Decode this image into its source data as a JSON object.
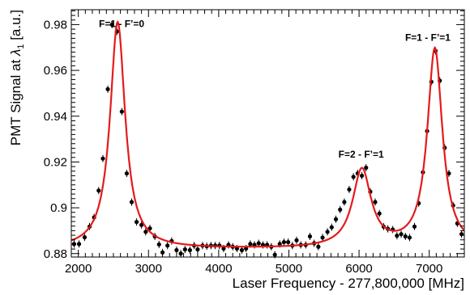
{
  "chart_data": {
    "type": "scatter",
    "title": "",
    "xlabel": "Laser Frequency - 277,800,000 [MHz]",
    "ylabel_main": "PMT Signal at ",
    "ylabel_symbol": "λ",
    "ylabel_subscript": "1",
    "ylabel_unit": " [a.u.]",
    "xlim": [
      1900,
      7500
    ],
    "ylim": [
      0.8785,
      0.9865
    ],
    "x_ticks": [
      2000,
      3000,
      4000,
      5000,
      6000,
      7000
    ],
    "y_ticks": [
      0.88,
      0.9,
      0.92,
      0.94,
      0.96,
      0.98
    ],
    "y_tick_labels": [
      "0.88",
      "0.9",
      "0.92",
      "0.94",
      "0.96",
      "0.98"
    ],
    "grid": false,
    "legend": "none",
    "colors": {
      "fit": "#e41a1c",
      "points": "#000000"
    },
    "annotations": [
      {
        "text": "F=1 - F’=0",
        "x": 2940,
        "y": 0.979
      },
      {
        "text": "F=2 - F’=1",
        "x": 6030,
        "y": 0.922
      },
      {
        "text": "F=1 - F’=1",
        "x": 6980,
        "y": 0.973
      }
    ],
    "fit": {
      "baseline": 0.882,
      "peaks": [
        {
          "center": 2560,
          "amplitude": 0.099,
          "hwhm": 130
        },
        {
          "center": 6040,
          "amplitude": 0.034,
          "hwhm": 160
        },
        {
          "center": 7080,
          "amplitude": 0.087,
          "hwhm": 130
        }
      ]
    },
    "points": [
      [
        1940,
        0.8842
      ],
      [
        2010,
        0.8842
      ],
      [
        2090,
        0.8871
      ],
      [
        2160,
        0.8918
      ],
      [
        2225,
        0.8958
      ],
      [
        2290,
        0.9075
      ],
      [
        2350,
        0.9215
      ],
      [
        2420,
        0.9518
      ],
      [
        2480,
        0.98
      ],
      [
        2550,
        0.977
      ],
      [
        2620,
        0.942
      ],
      [
        2690,
        0.915
      ],
      [
        2760,
        0.9025
      ],
      [
        2830,
        0.8938
      ],
      [
        2900,
        0.8925
      ],
      [
        2960,
        0.8895
      ],
      [
        3020,
        0.891
      ],
      [
        3090,
        0.8875
      ],
      [
        3150,
        0.884
      ],
      [
        3200,
        0.8805
      ],
      [
        3270,
        0.8835
      ],
      [
        3330,
        0.8855
      ],
      [
        3400,
        0.8815
      ],
      [
        3460,
        0.88
      ],
      [
        3520,
        0.8818
      ],
      [
        3590,
        0.8815
      ],
      [
        3650,
        0.8835
      ],
      [
        3700,
        0.8818
      ],
      [
        3770,
        0.8835
      ],
      [
        3830,
        0.8832
      ],
      [
        3890,
        0.8835
      ],
      [
        3950,
        0.8835
      ],
      [
        4010,
        0.8835
      ],
      [
        4070,
        0.8822
      ],
      [
        4140,
        0.8838
      ],
      [
        4200,
        0.883
      ],
      [
        4260,
        0.8822
      ],
      [
        4330,
        0.8815
      ],
      [
        4390,
        0.8822
      ],
      [
        4450,
        0.8842
      ],
      [
        4510,
        0.8838
      ],
      [
        4570,
        0.8845
      ],
      [
        4630,
        0.8838
      ],
      [
        4690,
        0.8838
      ],
      [
        4750,
        0.883
      ],
      [
        4800,
        0.8795
      ],
      [
        4870,
        0.8842
      ],
      [
        4930,
        0.885
      ],
      [
        4990,
        0.885
      ],
      [
        5050,
        0.8835
      ],
      [
        5110,
        0.8858
      ],
      [
        5170,
        0.8838
      ],
      [
        5240,
        0.8838
      ],
      [
        5300,
        0.8875
      ],
      [
        5360,
        0.8845
      ],
      [
        5420,
        0.883
      ],
      [
        5480,
        0.887
      ],
      [
        5550,
        0.8895
      ],
      [
        5610,
        0.8915
      ],
      [
        5670,
        0.895
      ],
      [
        5730,
        0.8992
      ],
      [
        5790,
        0.9025
      ],
      [
        5860,
        0.908
      ],
      [
        5920,
        0.9135
      ],
      [
        5980,
        0.915
      ],
      [
        6040,
        0.914
      ],
      [
        6100,
        0.9175
      ],
      [
        6160,
        0.907
      ],
      [
        6230,
        0.9025
      ],
      [
        6290,
        0.8975
      ],
      [
        6350,
        0.8918
      ],
      [
        6410,
        0.8908
      ],
      [
        6480,
        0.8905
      ],
      [
        6540,
        0.8878
      ],
      [
        6600,
        0.8885
      ],
      [
        6660,
        0.8875
      ],
      [
        6720,
        0.887
      ],
      [
        6790,
        0.8918
      ],
      [
        6850,
        0.902
      ],
      [
        6910,
        0.9155
      ],
      [
        6970,
        0.9335
      ],
      [
        7030,
        0.955
      ],
      [
        7090,
        0.9685
      ],
      [
        7150,
        0.9555
      ],
      [
        7220,
        0.9262
      ],
      [
        7280,
        0.915
      ],
      [
        7340,
        0.901
      ],
      [
        7400,
        0.8932
      ],
      [
        7460,
        0.8885
      ]
    ]
  }
}
